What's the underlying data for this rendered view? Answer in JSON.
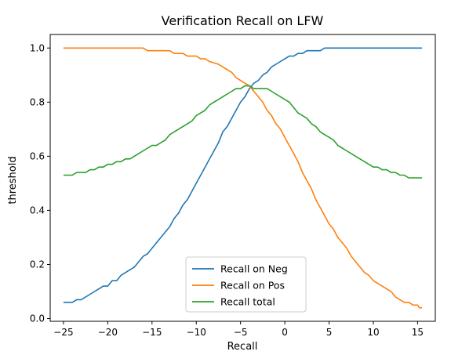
{
  "chart_data": {
    "type": "line",
    "title": "Verification Recall on LFW",
    "xlabel": "Recall",
    "ylabel": "threshold",
    "xlim": [
      -26.5,
      17
    ],
    "ylim": [
      -0.01,
      1.05
    ],
    "xticks": [
      -25,
      -20,
      -15,
      -10,
      -5,
      0,
      5,
      10,
      15
    ],
    "yticks": [
      0.0,
      0.2,
      0.4,
      0.6,
      0.8,
      1.0
    ],
    "xtick_labels": [
      "−25",
      "−20",
      "−15",
      "−10",
      "−5",
      "0",
      "5",
      "10",
      "15"
    ],
    "ytick_labels": [
      "0.0",
      "0.2",
      "0.4",
      "0.6",
      "0.8",
      "1.0"
    ],
    "grid": false,
    "legend_position": "lower-center",
    "series": [
      {
        "name": "Recall on Neg",
        "color": "#1f77b4",
        "points": [
          [
            -25,
            0.06
          ],
          [
            -24,
            0.06
          ],
          [
            -23.5,
            0.07
          ],
          [
            -23,
            0.07
          ],
          [
            -22,
            0.09
          ],
          [
            -21,
            0.11
          ],
          [
            -20.5,
            0.12
          ],
          [
            -20,
            0.12
          ],
          [
            -19.5,
            0.14
          ],
          [
            -19,
            0.14
          ],
          [
            -18.5,
            0.16
          ],
          [
            -18,
            0.17
          ],
          [
            -17,
            0.19
          ],
          [
            -16.5,
            0.21
          ],
          [
            -16,
            0.23
          ],
          [
            -15.5,
            0.24
          ],
          [
            -15,
            0.26
          ],
          [
            -14.5,
            0.28
          ],
          [
            -14,
            0.3
          ],
          [
            -13.5,
            0.32
          ],
          [
            -13,
            0.34
          ],
          [
            -12.5,
            0.37
          ],
          [
            -12,
            0.39
          ],
          [
            -11.5,
            0.42
          ],
          [
            -11,
            0.44
          ],
          [
            -10.5,
            0.47
          ],
          [
            -10,
            0.5
          ],
          [
            -9.5,
            0.53
          ],
          [
            -9,
            0.56
          ],
          [
            -8.5,
            0.59
          ],
          [
            -8,
            0.62
          ],
          [
            -7.5,
            0.65
          ],
          [
            -7,
            0.69
          ],
          [
            -6.5,
            0.71
          ],
          [
            -6,
            0.74
          ],
          [
            -5.5,
            0.77
          ],
          [
            -5,
            0.8
          ],
          [
            -4.5,
            0.82
          ],
          [
            -4,
            0.85
          ],
          [
            -3.5,
            0.87
          ],
          [
            -3,
            0.88
          ],
          [
            -2.5,
            0.9
          ],
          [
            -2,
            0.91
          ],
          [
            -1.5,
            0.93
          ],
          [
            -1,
            0.94
          ],
          [
            -0.5,
            0.95
          ],
          [
            0,
            0.96
          ],
          [
            0.5,
            0.97
          ],
          [
            1,
            0.97
          ],
          [
            1.5,
            0.98
          ],
          [
            2,
            0.98
          ],
          [
            2.5,
            0.99
          ],
          [
            4,
            0.99
          ],
          [
            4.5,
            1.0
          ],
          [
            15.5,
            1.0
          ]
        ]
      },
      {
        "name": "Recall on Pos",
        "color": "#ff7f0e",
        "points": [
          [
            -25,
            1.0
          ],
          [
            -16,
            1.0
          ],
          [
            -15.5,
            0.99
          ],
          [
            -13,
            0.99
          ],
          [
            -12.5,
            0.98
          ],
          [
            -11.5,
            0.98
          ],
          [
            -11,
            0.97
          ],
          [
            -10,
            0.97
          ],
          [
            -9.5,
            0.96
          ],
          [
            -9,
            0.96
          ],
          [
            -8.5,
            0.95
          ],
          [
            -7.5,
            0.94
          ],
          [
            -7,
            0.93
          ],
          [
            -6.5,
            0.92
          ],
          [
            -6,
            0.91
          ],
          [
            -5.5,
            0.89
          ],
          [
            -5,
            0.88
          ],
          [
            -4.5,
            0.87
          ],
          [
            -4,
            0.86
          ],
          [
            -3.5,
            0.84
          ],
          [
            -3,
            0.82
          ],
          [
            -2.5,
            0.8
          ],
          [
            -2,
            0.77
          ],
          [
            -1.5,
            0.75
          ],
          [
            -1,
            0.72
          ],
          [
            -0.5,
            0.7
          ],
          [
            0,
            0.67
          ],
          [
            0.5,
            0.64
          ],
          [
            1,
            0.61
          ],
          [
            1.5,
            0.58
          ],
          [
            2,
            0.54
          ],
          [
            2.5,
            0.51
          ],
          [
            3,
            0.48
          ],
          [
            3.5,
            0.44
          ],
          [
            4,
            0.41
          ],
          [
            4.5,
            0.38
          ],
          [
            5,
            0.35
          ],
          [
            5.5,
            0.33
          ],
          [
            6,
            0.3
          ],
          [
            6.5,
            0.28
          ],
          [
            7,
            0.26
          ],
          [
            7.5,
            0.23
          ],
          [
            8,
            0.21
          ],
          [
            8.5,
            0.19
          ],
          [
            9,
            0.17
          ],
          [
            9.5,
            0.16
          ],
          [
            10,
            0.14
          ],
          [
            10.5,
            0.13
          ],
          [
            11,
            0.12
          ],
          [
            11.5,
            0.11
          ],
          [
            12,
            0.1
          ],
          [
            12.5,
            0.08
          ],
          [
            13,
            0.07
          ],
          [
            13.5,
            0.06
          ],
          [
            14,
            0.06
          ],
          [
            14.5,
            0.05
          ],
          [
            15,
            0.05
          ],
          [
            15.2,
            0.04
          ],
          [
            15.5,
            0.04
          ]
        ]
      },
      {
        "name": "Recall total",
        "color": "#2ca02c",
        "points": [
          [
            -25,
            0.53
          ],
          [
            -24,
            0.53
          ],
          [
            -23.5,
            0.54
          ],
          [
            -22.5,
            0.54
          ],
          [
            -22,
            0.55
          ],
          [
            -21.5,
            0.55
          ],
          [
            -21,
            0.56
          ],
          [
            -20.5,
            0.56
          ],
          [
            -20,
            0.57
          ],
          [
            -19.5,
            0.57
          ],
          [
            -19,
            0.58
          ],
          [
            -18.5,
            0.58
          ],
          [
            -18,
            0.59
          ],
          [
            -17.5,
            0.59
          ],
          [
            -17,
            0.6
          ],
          [
            -16.5,
            0.61
          ],
          [
            -16,
            0.62
          ],
          [
            -15.5,
            0.63
          ],
          [
            -15,
            0.64
          ],
          [
            -14.5,
            0.64
          ],
          [
            -14,
            0.65
          ],
          [
            -13.5,
            0.66
          ],
          [
            -13,
            0.68
          ],
          [
            -12.5,
            0.69
          ],
          [
            -12,
            0.7
          ],
          [
            -11.5,
            0.71
          ],
          [
            -11,
            0.72
          ],
          [
            -10.5,
            0.73
          ],
          [
            -10,
            0.75
          ],
          [
            -9.5,
            0.76
          ],
          [
            -9,
            0.77
          ],
          [
            -8.5,
            0.79
          ],
          [
            -8,
            0.8
          ],
          [
            -7.5,
            0.81
          ],
          [
            -7,
            0.82
          ],
          [
            -6.5,
            0.83
          ],
          [
            -6,
            0.84
          ],
          [
            -5.5,
            0.85
          ],
          [
            -5,
            0.85
          ],
          [
            -4.5,
            0.86
          ],
          [
            -4,
            0.86
          ],
          [
            -3.5,
            0.85
          ],
          [
            -2,
            0.85
          ],
          [
            -1.5,
            0.84
          ],
          [
            -1,
            0.83
          ],
          [
            -0.5,
            0.82
          ],
          [
            0,
            0.81
          ],
          [
            0.5,
            0.8
          ],
          [
            1,
            0.78
          ],
          [
            1.5,
            0.76
          ],
          [
            2,
            0.75
          ],
          [
            2.5,
            0.74
          ],
          [
            3,
            0.72
          ],
          [
            3.5,
            0.71
          ],
          [
            4,
            0.69
          ],
          [
            4.5,
            0.68
          ],
          [
            5,
            0.67
          ],
          [
            5.5,
            0.66
          ],
          [
            6,
            0.64
          ],
          [
            7,
            0.62
          ],
          [
            8,
            0.6
          ],
          [
            9,
            0.58
          ],
          [
            10,
            0.56
          ],
          [
            10.5,
            0.56
          ],
          [
            11,
            0.55
          ],
          [
            11.5,
            0.55
          ],
          [
            12,
            0.54
          ],
          [
            12.5,
            0.54
          ],
          [
            13,
            0.53
          ],
          [
            13.5,
            0.53
          ],
          [
            14,
            0.52
          ],
          [
            15.5,
            0.52
          ]
        ]
      }
    ]
  }
}
